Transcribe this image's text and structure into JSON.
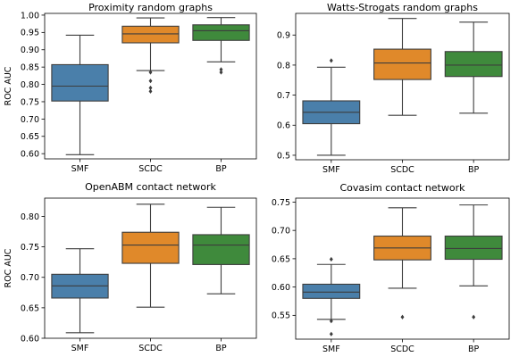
{
  "colors": {
    "SMF": "#4a7faa",
    "SCDC": "#e0892a",
    "BP": "#3f8a3c",
    "line": "#3d3d3d"
  },
  "chart_data": [
    {
      "type": "box",
      "title": "Proximity random graphs",
      "ylabel": "ROC AUC",
      "ylim": [
        0.585,
        1.005
      ],
      "yticks": [
        "0.60",
        "0.65",
        "0.70",
        "0.75",
        "0.80",
        "0.85",
        "0.90",
        "0.95",
        "1.00"
      ],
      "ytick_values": [
        0.6,
        0.65,
        0.7,
        0.75,
        0.8,
        0.85,
        0.9,
        0.95,
        1.0
      ],
      "categories": [
        "SMF",
        "SCDC",
        "BP"
      ],
      "boxes": [
        {
          "name": "SMF",
          "whislo": 0.597,
          "q1": 0.752,
          "med": 0.795,
          "q3": 0.857,
          "whishi": 0.942,
          "fliers": []
        },
        {
          "name": "SCDC",
          "whislo": 0.84,
          "q1": 0.92,
          "med": 0.946,
          "q3": 0.968,
          "whishi": 0.992,
          "fliers": [
            0.835,
            0.81,
            0.79,
            0.78
          ]
        },
        {
          "name": "BP",
          "whislo": 0.865,
          "q1": 0.927,
          "med": 0.955,
          "q3": 0.972,
          "whishi": 0.993,
          "fliers": [
            0.843,
            0.835
          ]
        }
      ]
    },
    {
      "type": "box",
      "title": "Watts-Strogats random graphs",
      "ylabel": "",
      "ylim": [
        0.485,
        0.972
      ],
      "yticks": [
        "0.5",
        "0.6",
        "0.7",
        "0.8",
        "0.9"
      ],
      "ytick_values": [
        0.5,
        0.6,
        0.7,
        0.8,
        0.9
      ],
      "categories": [
        "SMF",
        "SCDC",
        "BP"
      ],
      "boxes": [
        {
          "name": "SMF",
          "whislo": 0.5,
          "q1": 0.605,
          "med": 0.643,
          "q3": 0.681,
          "whishi": 0.793,
          "fliers": [
            0.815
          ]
        },
        {
          "name": "SCDC",
          "whislo": 0.633,
          "q1": 0.752,
          "med": 0.807,
          "q3": 0.853,
          "whishi": 0.955,
          "fliers": []
        },
        {
          "name": "BP",
          "whislo": 0.64,
          "q1": 0.762,
          "med": 0.8,
          "q3": 0.845,
          "whishi": 0.943,
          "fliers": []
        }
      ]
    },
    {
      "type": "box",
      "title": "OpenABM contact network",
      "ylabel": "ROC AUC",
      "ylim": [
        0.6,
        0.83
      ],
      "yticks": [
        "0.60",
        "0.65",
        "0.70",
        "0.75",
        "0.80"
      ],
      "ytick_values": [
        0.6,
        0.65,
        0.7,
        0.75,
        0.8
      ],
      "categories": [
        "SMF",
        "SCDC",
        "BP"
      ],
      "boxes": [
        {
          "name": "SMF",
          "whislo": 0.609,
          "q1": 0.666,
          "med": 0.686,
          "q3": 0.705,
          "whishi": 0.747,
          "fliers": []
        },
        {
          "name": "SCDC",
          "whislo": 0.651,
          "q1": 0.723,
          "med": 0.753,
          "q3": 0.774,
          "whishi": 0.82,
          "fliers": []
        },
        {
          "name": "BP",
          "whislo": 0.673,
          "q1": 0.721,
          "med": 0.753,
          "q3": 0.77,
          "whishi": 0.815,
          "fliers": []
        }
      ]
    },
    {
      "type": "box",
      "title": "Covasim contact network",
      "ylabel": "",
      "ylim": [
        0.508,
        0.757
      ],
      "yticks": [
        "0.55",
        "0.60",
        "0.65",
        "0.70",
        "0.75"
      ],
      "ytick_values": [
        0.55,
        0.6,
        0.65,
        0.7,
        0.75
      ],
      "categories": [
        "SMF",
        "SCDC",
        "BP"
      ],
      "boxes": [
        {
          "name": "SMF",
          "whislo": 0.543,
          "q1": 0.58,
          "med": 0.591,
          "q3": 0.605,
          "whishi": 0.64,
          "fliers": [
            0.649,
            0.54,
            0.517
          ]
        },
        {
          "name": "SCDC",
          "whislo": 0.598,
          "q1": 0.648,
          "med": 0.669,
          "q3": 0.69,
          "whishi": 0.74,
          "fliers": [
            0.547
          ]
        },
        {
          "name": "BP",
          "whislo": 0.602,
          "q1": 0.649,
          "med": 0.668,
          "q3": 0.69,
          "whishi": 0.745,
          "fliers": [
            0.547
          ]
        }
      ]
    }
  ]
}
